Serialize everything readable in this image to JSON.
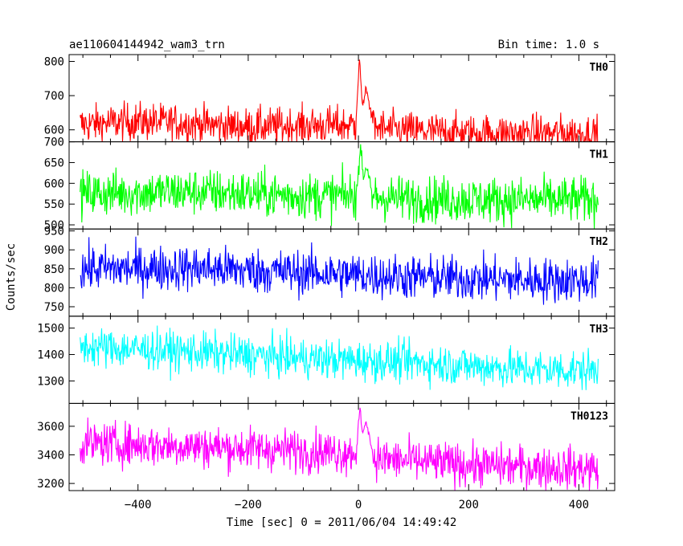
{
  "header": {
    "title": "ae110604144942_wam3_trn",
    "bin_time": "Bin time: 1.0 s"
  },
  "chart_data": {
    "type": "line",
    "title": "ae110604144942_wam3_trn",
    "subtitle": "Bin time: 1.0 s",
    "xlabel": "Time [sec] 0 = 2011/06/04 14:49:42",
    "ylabel": "Counts/sec",
    "xlim": [
      -525,
      465
    ],
    "x_ticks": [
      -400,
      -200,
      0,
      200,
      400
    ],
    "x_tick_labels": [
      "−400",
      "−200",
      "0",
      "200",
      "400"
    ],
    "x_range_data": [
      -505,
      435
    ],
    "bin_time_s": 1.0,
    "grid": false,
    "panels": [
      {
        "name": "TH0",
        "color": "#ff0000",
        "ylim": [
          565,
          820
        ],
        "yticks": [
          600,
          700,
          800
        ],
        "segments": [
          [
            -505,
            615
          ],
          [
            -400,
            625
          ],
          [
            -300,
            618
          ],
          [
            -200,
            608
          ],
          [
            -100,
            612
          ],
          [
            -10,
            614
          ],
          [
            0,
            615
          ],
          [
            60,
            600
          ],
          [
            200,
            590
          ],
          [
            300,
            590
          ],
          [
            435,
            588
          ]
        ],
        "noise": 28,
        "peaks": [
          [
            2,
            815,
            6
          ],
          [
            14,
            715,
            14
          ]
        ]
      },
      {
        "name": "TH1",
        "color": "#00ff00",
        "ylim": [
          490,
          700
        ],
        "yticks": [
          500,
          550,
          600,
          650,
          700
        ],
        "segments": [
          [
            -505,
            575
          ],
          [
            -300,
            580
          ],
          [
            -100,
            570
          ],
          [
            0,
            570
          ],
          [
            100,
            562
          ],
          [
            300,
            560
          ],
          [
            435,
            560
          ]
        ],
        "noise": 28,
        "peaks": [
          [
            4,
            695,
            6
          ],
          [
            14,
            645,
            10
          ]
        ]
      },
      {
        "name": "TH2",
        "color": "#0000ff",
        "ylim": [
          725,
          955
        ],
        "yticks": [
          750,
          800,
          850,
          900,
          950
        ],
        "segments": [
          [
            -505,
            850
          ],
          [
            -300,
            852
          ],
          [
            -100,
            840
          ],
          [
            100,
            828
          ],
          [
            300,
            820
          ],
          [
            435,
            820
          ]
        ],
        "noise": 30,
        "peaks": []
      },
      {
        "name": "TH3",
        "color": "#00ffff",
        "ylim": [
          1215,
          1545
        ],
        "yticks": [
          1300,
          1400,
          1500
        ],
        "segments": [
          [
            -505,
            1430
          ],
          [
            -300,
            1410
          ],
          [
            -100,
            1385
          ],
          [
            100,
            1370
          ],
          [
            300,
            1345
          ],
          [
            435,
            1340
          ]
        ],
        "noise": 38,
        "peaks": []
      },
      {
        "name": "TH0123",
        "color": "#ff00ff",
        "ylim": [
          3150,
          3760
        ],
        "yticks": [
          3200,
          3400,
          3600
        ],
        "segments": [
          [
            -505,
            3480
          ],
          [
            -300,
            3460
          ],
          [
            -100,
            3430
          ],
          [
            0,
            3415
          ],
          [
            40,
            3370
          ],
          [
            200,
            3330
          ],
          [
            435,
            3300
          ]
        ],
        "noise": 75,
        "peaks": [
          [
            3,
            3740,
            6
          ],
          [
            14,
            3640,
            12
          ]
        ]
      }
    ]
  }
}
